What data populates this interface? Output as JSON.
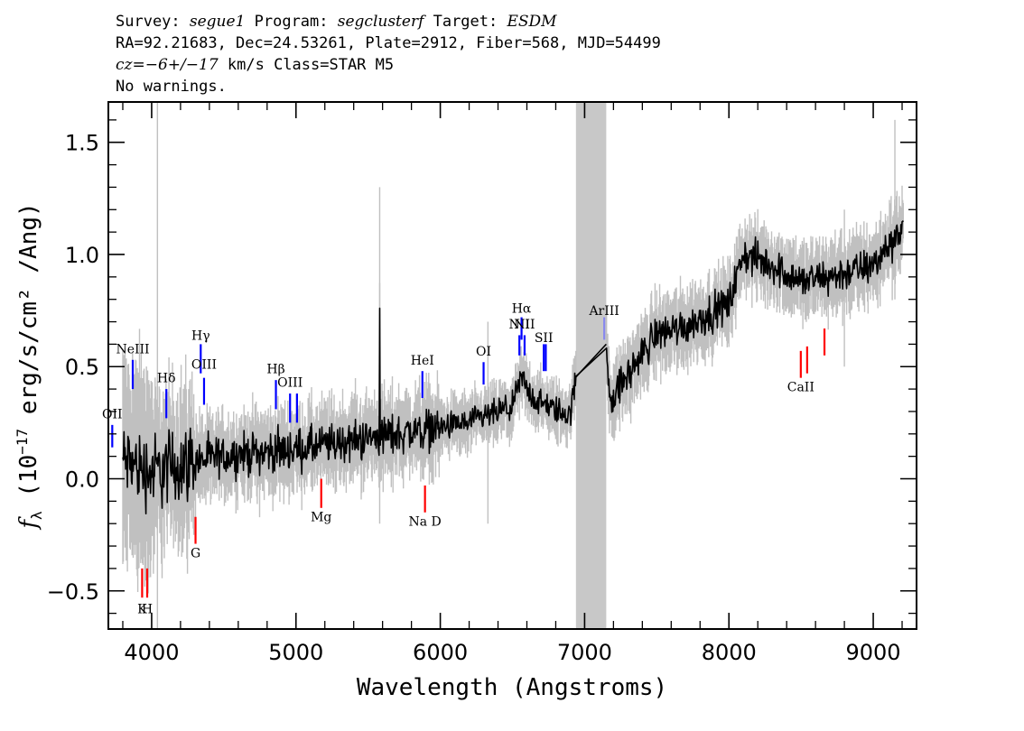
{
  "header": {
    "line1_a": "Survey: ",
    "line1_b": "segue1",
    "line1_c": " Program: ",
    "line1_d": "segclusterf",
    "line1_e": " Target: ",
    "line1_f": "ESDM",
    "line2": "RA=92.21683, Dec=24.53261, Plate=2912, Fiber=568, MJD=54499",
    "line3_a": "cz=",
    "line3_b": "−6+/−17",
    "line3_c": " km/s Class=STAR M5",
    "line4": "No warnings."
  },
  "chart_data": {
    "type": "line",
    "xlabel": "Wavelength (Angstroms)",
    "ylabel_pre": "f",
    "ylabel_sub": "λ",
    "ylabel_rest": " (10",
    "ylabel_exp": "−17",
    "ylabel_post": " erg/s/cm² /Ang)",
    "xlim": [
      3700,
      9300
    ],
    "ylim": [
      -0.67,
      1.68
    ],
    "xticks": [
      4000,
      5000,
      6000,
      7000,
      8000,
      9000
    ],
    "xtick_labels": [
      "4000",
      "5000",
      "6000",
      "7000",
      "8000",
      "9000"
    ],
    "yticks": [
      -0.5,
      0.0,
      0.5,
      1.0,
      1.5
    ],
    "ytick_labels": [
      "−0.5",
      "0.0",
      "0.5",
      "1.0",
      "1.5"
    ],
    "masked_region": [
      6940,
      7150
    ],
    "colors": {
      "flux": "#000000",
      "error": "#c0c0c0",
      "emission": "#0000ff",
      "absorption": "#ff0000",
      "mask": "#c8c8c8",
      "arIII": "#8888ee"
    },
    "continuum_knots": [
      [
        3800,
        0.08
      ],
      [
        4000,
        0.03
      ],
      [
        4300,
        0.08
      ],
      [
        4600,
        0.11
      ],
      [
        5000,
        0.13
      ],
      [
        5400,
        0.17
      ],
      [
        5800,
        0.21
      ],
      [
        6200,
        0.25
      ],
      [
        6500,
        0.32
      ],
      [
        6560,
        0.45
      ],
      [
        6650,
        0.35
      ],
      [
        6900,
        0.28
      ],
      [
        6940,
        0.45
      ],
      [
        7150,
        0.6
      ],
      [
        7180,
        0.35
      ],
      [
        7500,
        0.65
      ],
      [
        7700,
        0.68
      ],
      [
        8000,
        0.78
      ],
      [
        8100,
        1.0
      ],
      [
        8300,
        0.95
      ],
      [
        8500,
        0.88
      ],
      [
        8700,
        0.9
      ],
      [
        9000,
        0.95
      ],
      [
        9200,
        1.12
      ]
    ],
    "emission_lines": [
      {
        "label": "OII",
        "x": 3727,
        "y0": 0.14,
        "y1": 0.24,
        "ty": 0.27
      },
      {
        "label": "NeIII",
        "x": 3869,
        "y0": 0.4,
        "y1": 0.53,
        "ty": 0.56
      },
      {
        "label": "Hδ",
        "x": 4102,
        "y0": 0.27,
        "y1": 0.4,
        "ty": 0.43
      },
      {
        "label": "Hγ",
        "x": 4340,
        "y0": 0.47,
        "y1": 0.6,
        "ty": 0.62
      },
      {
        "label": "OIII",
        "x": 4363,
        "y0": 0.33,
        "y1": 0.45,
        "ty": 0.49
      },
      {
        "label": "Hβ",
        "x": 4861,
        "y0": 0.31,
        "y1": 0.44,
        "ty": 0.47
      },
      {
        "label": "OIII",
        "x": 4959,
        "y0": 0.25,
        "y1": 0.38,
        "ty": 0.41
      },
      {
        "label": "",
        "x": 5007,
        "y0": 0.25,
        "y1": 0.38,
        "ty": 0.41
      },
      {
        "label": "HeI",
        "x": 5876,
        "y0": 0.36,
        "y1": 0.48,
        "ty": 0.51
      },
      {
        "label": "OI",
        "x": 6300,
        "y0": 0.42,
        "y1": 0.52,
        "ty": 0.55
      },
      {
        "label": "NII",
        "x": 6548,
        "y0": 0.55,
        "y1": 0.64,
        "ty": 0.67
      },
      {
        "label": "Hα",
        "x": 6563,
        "y0": 0.62,
        "y1": 0.72,
        "ty": 0.74
      },
      {
        "label": "NII",
        "x": 6584,
        "y0": 0.55,
        "y1": 0.64,
        "ty": 0.67
      },
      {
        "label": "SII",
        "x": 6717,
        "y0": 0.48,
        "y1": 0.6,
        "ty": 0.61
      },
      {
        "label": "",
        "x": 6731,
        "y0": 0.48,
        "y1": 0.6,
        "ty": 0.61
      }
    ],
    "arIII": {
      "label": "ArIII",
      "x": 7136,
      "y0": 0.62,
      "y1": 0.72,
      "ty": 0.73
    },
    "absorption_lines": [
      {
        "label": "K",
        "x": 3934,
        "y0": -0.4,
        "y1": -0.53,
        "ty": -0.6
      },
      {
        "label": "H",
        "x": 3969,
        "y0": -0.4,
        "y1": -0.53,
        "ty": -0.6
      },
      {
        "label": "G",
        "x": 4304,
        "y0": -0.17,
        "y1": -0.29,
        "ty": -0.35
      },
      {
        "label": "Mg",
        "x": 5175,
        "y0": 0.0,
        "y1": -0.13,
        "ty": -0.19
      },
      {
        "label": "Na D",
        "x": 5894,
        "y0": -0.03,
        "y1": -0.15,
        "ty": -0.21
      },
      {
        "label": "CaII",
        "x": 8498,
        "y0": 0.57,
        "y1": 0.45,
        "ty": 0.39
      },
      {
        "label": "",
        "x": 8542,
        "y0": 0.59,
        "y1": 0.47,
        "ty": 0.39
      },
      {
        "label": "",
        "x": 8662,
        "y0": 0.67,
        "y1": 0.55,
        "ty": 0.39
      }
    ]
  }
}
